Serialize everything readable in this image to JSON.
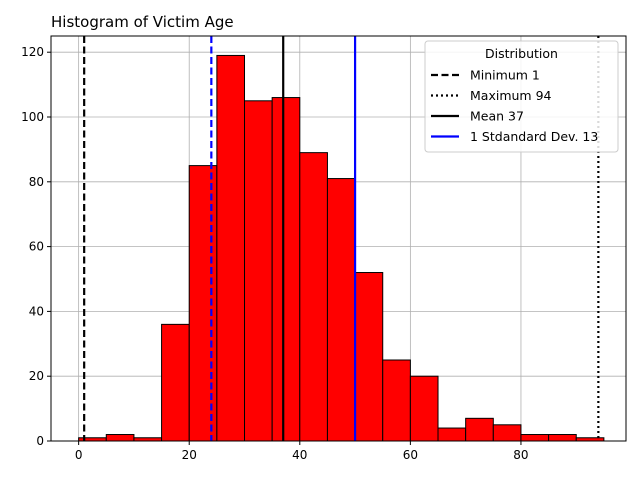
{
  "chart_data": {
    "type": "bar",
    "title": "Histogram of Victim Age",
    "xlabel": "",
    "ylabel": "",
    "xlim": [
      -5,
      99
    ],
    "ylim": [
      0,
      125
    ],
    "xticks": [
      0,
      20,
      40,
      60,
      80
    ],
    "yticks": [
      0,
      20,
      40,
      60,
      80,
      100,
      120
    ],
    "grid": true,
    "bar_color": "#ff0000",
    "edge_color": "#000000",
    "bins": [
      {
        "start": 0,
        "end": 5,
        "value": 1
      },
      {
        "start": 5,
        "end": 10,
        "value": 2
      },
      {
        "start": 10,
        "end": 15,
        "value": 1
      },
      {
        "start": 15,
        "end": 20,
        "value": 36
      },
      {
        "start": 20,
        "end": 25,
        "value": 85
      },
      {
        "start": 25,
        "end": 30,
        "value": 119
      },
      {
        "start": 30,
        "end": 35,
        "value": 105
      },
      {
        "start": 35,
        "end": 40,
        "value": 106
      },
      {
        "start": 40,
        "end": 45,
        "value": 89
      },
      {
        "start": 45,
        "end": 50,
        "value": 81
      },
      {
        "start": 50,
        "end": 55,
        "value": 52
      },
      {
        "start": 55,
        "end": 60,
        "value": 25
      },
      {
        "start": 60,
        "end": 65,
        "value": 20
      },
      {
        "start": 65,
        "end": 70,
        "value": 4
      },
      {
        "start": 70,
        "end": 75,
        "value": 7
      },
      {
        "start": 75,
        "end": 80,
        "value": 5
      },
      {
        "start": 80,
        "end": 85,
        "value": 2
      },
      {
        "start": 85,
        "end": 90,
        "value": 2
      },
      {
        "start": 90,
        "end": 95,
        "value": 1
      }
    ],
    "reference_lines": [
      {
        "name": "min",
        "label": "Minimum 1",
        "x": 1,
        "color": "#000000",
        "style": "dashed"
      },
      {
        "name": "max",
        "label": "Maximum 94",
        "x": 94,
        "color": "#000000",
        "style": "dotted"
      },
      {
        "name": "mean",
        "label": "Mean 37",
        "x": 37,
        "color": "#000000",
        "style": "solid"
      },
      {
        "name": "std-upper",
        "label": "1 Stdandard Dev. 13",
        "x": 50,
        "color": "#0000ff",
        "style": "solid"
      },
      {
        "name": "std-lower",
        "label": "",
        "x": 24,
        "color": "#0000ff",
        "style": "dashed"
      }
    ],
    "legend": {
      "title": "Distribution",
      "position": "top-right",
      "entries": [
        {
          "label": "Minimum 1",
          "color": "#000000",
          "style": "dashed"
        },
        {
          "label": "Maximum 94",
          "color": "#000000",
          "style": "dotted"
        },
        {
          "label": "Mean 37",
          "color": "#000000",
          "style": "solid"
        },
        {
          "label": "1 Stdandard Dev. 13",
          "color": "#0000ff",
          "style": "solid"
        }
      ]
    }
  }
}
